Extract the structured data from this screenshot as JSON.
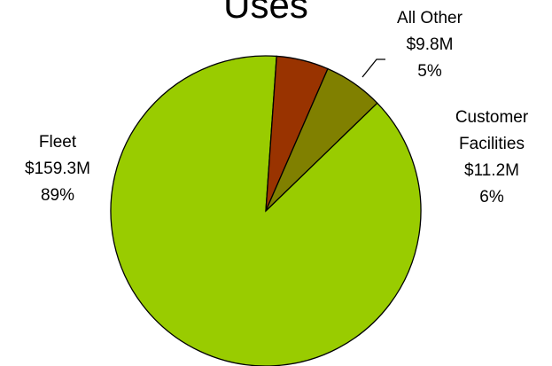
{
  "chart_data": {
    "type": "pie",
    "title": "Uses",
    "slices": [
      {
        "name": "Fleet",
        "amount": "$159.3M",
        "percent": "89%",
        "value": 159.3,
        "color": "#99cc00"
      },
      {
        "name": "Customer Facilities",
        "amount": "$11.2M",
        "percent": "6%",
        "value": 11.2,
        "color": "#808000"
      },
      {
        "name": "All Other",
        "amount": "$9.8M",
        "percent": "5%",
        "value": 9.8,
        "color": "#993300"
      }
    ],
    "legend": "none"
  }
}
